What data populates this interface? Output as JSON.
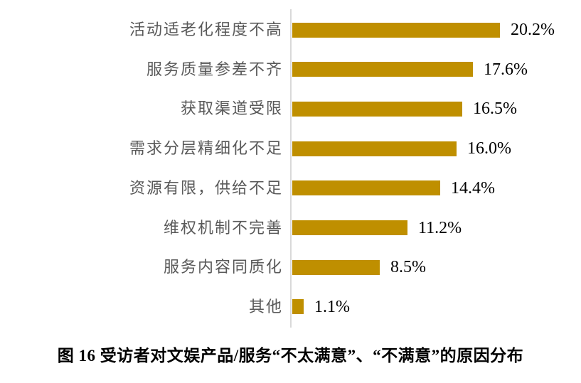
{
  "chart_data": {
    "type": "bar",
    "orientation": "horizontal",
    "title": "图 16 受访者对文娱产品/服务“不太满意”、“不满意”的原因分布",
    "xlabel": "",
    "ylabel": "",
    "categories": [
      "活动适老化程度不高",
      "服务质量参差不齐",
      "获取渠道受限",
      "需求分层精细化不足",
      "资源有限，供给不足",
      "维权机制不完善",
      "服务内容同质化",
      "其他"
    ],
    "values": [
      20.2,
      17.6,
      16.5,
      16.0,
      14.4,
      11.2,
      8.5,
      1.1
    ],
    "value_labels": [
      "20.2%",
      "17.6%",
      "16.5%",
      "16.0%",
      "14.4%",
      "11.2%",
      "8.5%",
      "1.1%"
    ],
    "xlim": [
      0,
      20.2
    ],
    "grid": false,
    "legend": "none",
    "colors": {
      "bar": "#bf8f00",
      "axis_line": "#d9d9d9",
      "category_label": "#595959",
      "value_label": "#000000"
    }
  },
  "caption": "图 16 受访者对文娱产品/服务“不太满意”、“不满意”的原因分布"
}
